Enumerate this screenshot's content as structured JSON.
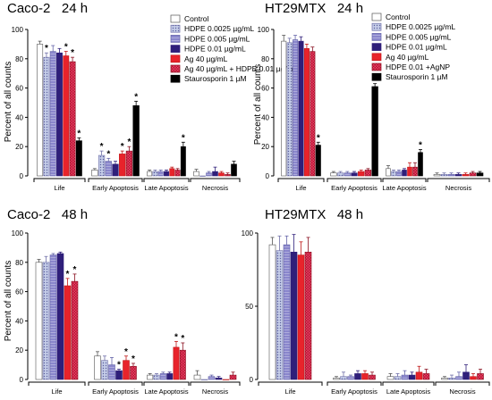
{
  "series_styles": [
    {
      "fill": "#ffffff",
      "pattern": "none",
      "stroke": "#555555"
    },
    {
      "fill": "#c5cde8",
      "pattern": "dots",
      "stroke": "#7070a8"
    },
    {
      "fill": "#8a86cc",
      "pattern": "hatch",
      "stroke": "#6464a8"
    },
    {
      "fill": "#2f1f7a",
      "pattern": "none",
      "stroke": "#2f1f7a"
    },
    {
      "fill": "#e8232b",
      "pattern": "none",
      "stroke": "#c01818"
    },
    {
      "fill": "#b5162e",
      "pattern": "check",
      "stroke": "#8a1020"
    },
    {
      "fill": "#000000",
      "pattern": "none",
      "stroke": "#000000"
    }
  ],
  "chart_data": [
    {
      "type": "bar",
      "title": "Caco-2   24 h",
      "ylabel": "Percent of all counts",
      "ylim": [
        0,
        100
      ],
      "yticks": [
        0,
        20,
        40,
        60,
        80,
        100
      ],
      "categories": [
        "Life",
        "Early Apoptosis",
        "Late Apoptosis",
        "Necrosis"
      ],
      "legend_position": "top-right",
      "series": [
        {
          "name": "Control",
          "values": [
            90,
            4,
            3,
            3
          ],
          "errors": [
            2,
            1,
            1,
            1.5
          ],
          "sig": [
            false,
            false,
            false,
            false
          ]
        },
        {
          "name": "HDPE 0.0025 µg/mL",
          "values": [
            81,
            14,
            3,
            0
          ],
          "errors": [
            3,
            3,
            1,
            0
          ],
          "sig": [
            true,
            true,
            false,
            false
          ]
        },
        {
          "name": "HDPE 0.005 µg/mL",
          "values": [
            85,
            10,
            3,
            2
          ],
          "errors": [
            4,
            2,
            1,
            1
          ],
          "sig": [
            false,
            true,
            false,
            false
          ]
        },
        {
          "name": "HDPE 0.01 µg/mL",
          "values": [
            84,
            8,
            3,
            3
          ],
          "errors": [
            3,
            2,
            1,
            3
          ],
          "sig": [
            false,
            false,
            false,
            false
          ]
        },
        {
          "name": "Ag 40 µg/mL",
          "values": [
            82,
            15,
            5,
            2
          ],
          "errors": [
            3,
            2,
            1,
            1
          ],
          "sig": [
            true,
            true,
            false,
            false
          ]
        },
        {
          "name": "Ag 40 µg/mL + HDPE 0.01 µg/mL",
          "values": [
            78,
            17,
            4,
            1
          ],
          "errors": [
            3,
            3,
            1,
            1
          ],
          "sig": [
            true,
            true,
            false,
            false
          ]
        },
        {
          "name": "Staurosporin 1 µM",
          "values": [
            24,
            48,
            20,
            8
          ],
          "errors": [
            2,
            3,
            3,
            2
          ],
          "sig": [
            true,
            true,
            true,
            false
          ]
        }
      ]
    },
    {
      "type": "bar",
      "title": "HT29MTX   24 h",
      "ylabel": "Percent of all counts",
      "ylim": [
        0,
        100
      ],
      "yticks": [
        0,
        20,
        40,
        60,
        80,
        100
      ],
      "categories": [
        "Life",
        "Early Apoptosis",
        "Late Apoptosis",
        "Necrosis"
      ],
      "legend_position": "top-right",
      "series": [
        {
          "name": "Control",
          "values": [
            92,
            2,
            5,
            1
          ],
          "errors": [
            4,
            1,
            2,
            1
          ],
          "sig": [
            false,
            false,
            false,
            false
          ]
        },
        {
          "name": "HDPE 0.0025 µg/mL",
          "values": [
            91,
            2,
            3,
            1
          ],
          "errors": [
            3,
            1,
            1,
            1
          ],
          "sig": [
            false,
            false,
            false,
            false
          ]
        },
        {
          "name": "HDPE 0.005 µg/mL",
          "values": [
            93,
            2,
            3,
            1
          ],
          "errors": [
            3,
            1,
            1,
            1
          ],
          "sig": [
            false,
            false,
            false,
            false
          ]
        },
        {
          "name": "HDPE 0.01 µg/mL",
          "values": [
            92,
            2,
            4,
            1
          ],
          "errors": [
            3,
            1,
            1,
            1
          ],
          "sig": [
            false,
            false,
            false,
            false
          ]
        },
        {
          "name": "Ag 40 µg/mL",
          "values": [
            87,
            3,
            6,
            1
          ],
          "errors": [
            3,
            1,
            3,
            1
          ],
          "sig": [
            false,
            false,
            false,
            false
          ]
        },
        {
          "name": "HDPE 0.01 +AgNP",
          "values": [
            85,
            4,
            6,
            2
          ],
          "errors": [
            3,
            1,
            3,
            1
          ],
          "sig": [
            false,
            false,
            false,
            false
          ]
        },
        {
          "name": "Staurosporin 1 µM",
          "values": [
            21,
            61,
            16,
            2
          ],
          "errors": [
            2,
            2,
            2,
            1
          ],
          "sig": [
            true,
            true,
            true,
            false
          ]
        }
      ]
    },
    {
      "type": "bar",
      "title": "Caco-2   48 h",
      "ylabel": "Percent of all counts",
      "ylim": [
        0,
        100
      ],
      "yticks": [
        0,
        20,
        40,
        60,
        80,
        100
      ],
      "categories": [
        "Life",
        "Early Apoptosis",
        "Late Apoptosis",
        "Necrosis"
      ],
      "series": [
        {
          "name": "Control",
          "values": [
            80,
            16,
            3,
            3
          ],
          "errors": [
            2,
            3,
            1,
            3
          ],
          "sig": [
            false,
            false,
            false,
            false
          ]
        },
        {
          "name": "HDPE 0.0025 µg/mL",
          "values": [
            80,
            13,
            3,
            0
          ],
          "errors": [
            4,
            3,
            1,
            0
          ],
          "sig": [
            false,
            false,
            false,
            false
          ]
        },
        {
          "name": "HDPE 0.005 µg/mL",
          "values": [
            85,
            10,
            4,
            2
          ],
          "errors": [
            1,
            5,
            1,
            1
          ],
          "sig": [
            false,
            false,
            false,
            false
          ]
        },
        {
          "name": "HDPE 0.01 µg/mL",
          "values": [
            86,
            6,
            4,
            1
          ],
          "errors": [
            1,
            1,
            1,
            1
          ],
          "sig": [
            false,
            true,
            false,
            false
          ]
        },
        {
          "name": "Ag 40 µg/mL",
          "values": [
            64,
            13,
            22,
            0
          ],
          "errors": [
            5,
            3,
            4,
            0
          ],
          "sig": [
            true,
            true,
            true,
            false
          ]
        },
        {
          "name": "Ag 40 µg/mL + HDPE 0.01 µg/mL",
          "values": [
            67,
            9,
            20,
            3
          ],
          "errors": [
            5,
            2,
            5,
            2
          ],
          "sig": [
            true,
            true,
            true,
            false
          ]
        }
      ]
    },
    {
      "type": "bar",
      "title": "HT29MTX   48 h",
      "ylabel": "",
      "ylim": [
        0,
        100
      ],
      "yticks": [
        0,
        50,
        100
      ],
      "categories": [
        "Life",
        "Early Apoptosis",
        "Late Apoptosis",
        "Necrosis"
      ],
      "series": [
        {
          "name": "Control",
          "values": [
            92,
            1,
            2,
            1
          ],
          "errors": [
            5,
            1,
            2,
            1
          ],
          "sig": [
            false,
            false,
            false,
            false
          ]
        },
        {
          "name": "HDPE 0.0025 µg/mL",
          "values": [
            88,
            2,
            2,
            1
          ],
          "errors": [
            10,
            3,
            2,
            2
          ],
          "sig": [
            false,
            false,
            false,
            false
          ]
        },
        {
          "name": "HDPE 0.005 µg/mL",
          "values": [
            92,
            2,
            3,
            2
          ],
          "errors": [
            6,
            1,
            3,
            3
          ],
          "sig": [
            false,
            false,
            false,
            false
          ]
        },
        {
          "name": "HDPE 0.01 µg/mL",
          "values": [
            87,
            4,
            3,
            5
          ],
          "errors": [
            12,
            2,
            2,
            5
          ],
          "sig": [
            false,
            false,
            false,
            false
          ]
        },
        {
          "name": "Ag 40 µg/mL",
          "values": [
            85,
            4,
            5,
            2
          ],
          "errors": [
            9,
            2,
            4,
            2
          ],
          "sig": [
            false,
            false,
            false,
            false
          ]
        },
        {
          "name": "HDPE 0.01 +AgNP",
          "values": [
            87,
            3,
            4,
            4
          ],
          "errors": [
            10,
            2,
            3,
            3
          ],
          "sig": [
            false,
            false,
            false,
            false
          ]
        }
      ]
    }
  ]
}
